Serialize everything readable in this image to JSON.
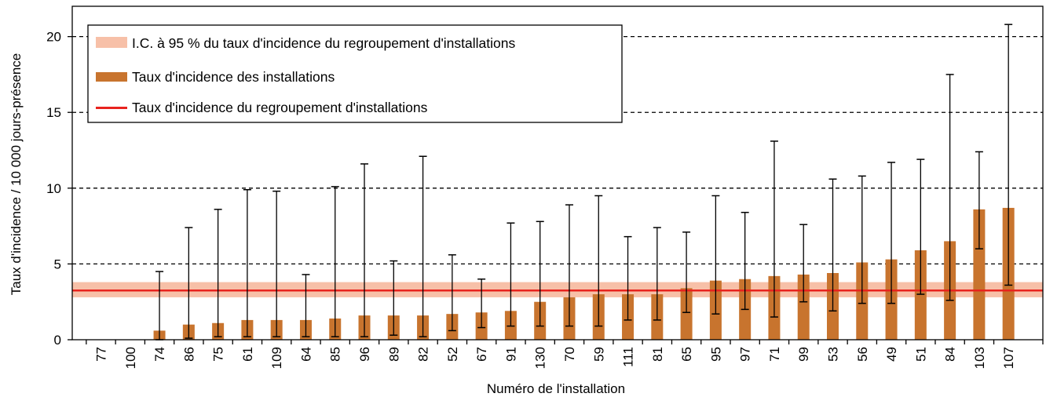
{
  "chart_data": {
    "type": "bar",
    "xlabel": "Numéro de l'installation",
    "ylabel": "Taux d'incidence / 10 000 jours-présence",
    "ylim": [
      0,
      22
    ],
    "yticks": [
      0,
      5,
      10,
      15,
      20
    ],
    "grid": "horizontal-dashed",
    "legend_position": "top-left",
    "categories": [
      "77",
      "100",
      "74",
      "86",
      "75",
      "61",
      "109",
      "64",
      "85",
      "96",
      "89",
      "82",
      "52",
      "67",
      "91",
      "130",
      "70",
      "59",
      "111",
      "81",
      "65",
      "95",
      "97",
      "71",
      "99",
      "53",
      "56",
      "49",
      "51",
      "84",
      "103",
      "107"
    ],
    "series": [
      {
        "name": "Taux d'incidence des installations",
        "color": "#c8742e",
        "values": [
          0,
          0,
          0.6,
          1.0,
          1.1,
          1.3,
          1.3,
          1.3,
          1.4,
          1.6,
          1.6,
          1.6,
          1.7,
          1.8,
          1.9,
          2.5,
          2.8,
          3.0,
          3.0,
          3.0,
          3.4,
          3.9,
          4.0,
          4.2,
          4.3,
          4.4,
          5.1,
          5.3,
          5.9,
          6.5,
          8.6,
          8.7
        ],
        "ci_lower": [
          null,
          null,
          0.0,
          0.1,
          0.2,
          0.2,
          0.2,
          0.2,
          0.2,
          0.2,
          0.3,
          0.2,
          0.6,
          0.8,
          0.9,
          0.9,
          0.9,
          0.9,
          1.3,
          1.3,
          1.8,
          1.7,
          2.0,
          1.5,
          2.5,
          1.9,
          2.4,
          2.4,
          3.0,
          2.6,
          6.0,
          3.6
        ],
        "ci_upper": [
          null,
          null,
          4.5,
          7.4,
          8.6,
          9.9,
          9.8,
          4.3,
          10.1,
          11.6,
          5.2,
          12.1,
          5.6,
          4.0,
          7.7,
          7.8,
          8.9,
          9.5,
          6.8,
          7.4,
          7.1,
          9.5,
          8.4,
          13.1,
          7.6,
          10.6,
          10.8,
          11.7,
          11.9,
          17.5,
          12.4,
          20.8
        ]
      }
    ],
    "reference_line": {
      "name": "Taux d'incidence du regroupement d'installations",
      "value": 3.25,
      "color": "#e8231e"
    },
    "reference_band": {
      "name": "I.C. à 95 % du taux d'incidence du regroupement d'installations",
      "lower": 2.8,
      "upper": 3.8,
      "color": "#f7c0a8"
    }
  }
}
